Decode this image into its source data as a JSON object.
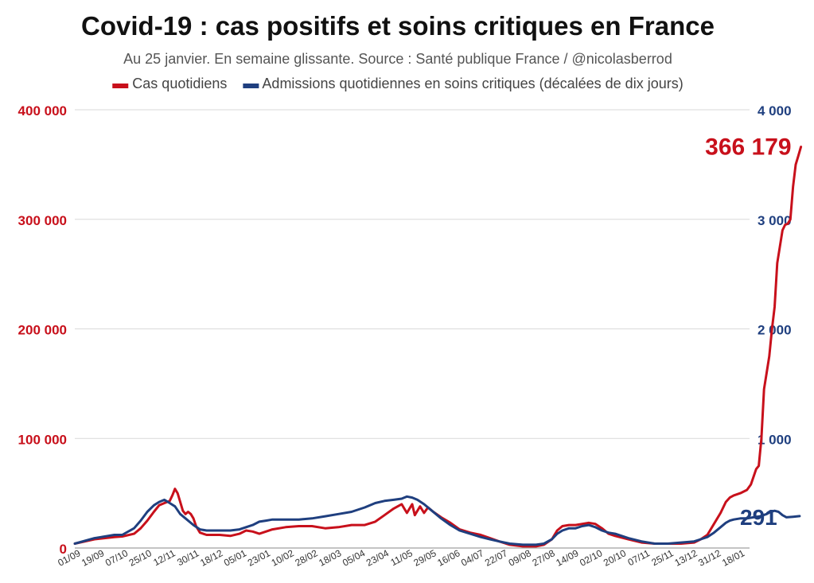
{
  "chart_data": {
    "type": "line",
    "title": "Covid-19 : cas positifs et soins critiques en France",
    "subtitle": "Au 25 janvier. En semaine glissante. Source : Santé publique France / @nicolasberrod",
    "left_axis": {
      "range": [
        0,
        400000
      ],
      "ticks": [
        {
          "value": 0,
          "label": "0"
        },
        {
          "value": 100000,
          "label": "100 000"
        },
        {
          "value": 200000,
          "label": "200 000"
        },
        {
          "value": 300000,
          "label": "300 000"
        },
        {
          "value": 400000,
          "label": "400 000"
        }
      ],
      "color": "#c8101b"
    },
    "right_axis": {
      "range": [
        0,
        4000
      ],
      "ticks": [
        {
          "value": 1000,
          "label": "1 000"
        },
        {
          "value": 2000,
          "label": "2 000"
        },
        {
          "value": 3000,
          "label": "3 000"
        },
        {
          "value": 4000,
          "label": "4 000"
        }
      ],
      "color": "#1f3f7f"
    },
    "x_tick_labels": [
      "01/09",
      "19/09",
      "07/10",
      "25/10",
      "12/11",
      "30/11",
      "18/12",
      "05/01",
      "23/01",
      "10/02",
      "28/02",
      "18/03",
      "05/04",
      "23/04",
      "11/05",
      "29/05",
      "16/06",
      "04/07",
      "22/07",
      "09/08",
      "27/08",
      "14/09",
      "02/10",
      "20/10",
      "07/11",
      "25/11",
      "13/12",
      "31/12",
      "18/01"
    ],
    "x_tick_interval_days": 18,
    "total_days": 512,
    "series": [
      {
        "name": "Cas quotidiens",
        "axis": "left",
        "color": "#c8101b",
        "end_label": "366 179",
        "points": [
          [
            0,
            4000
          ],
          [
            15,
            8000
          ],
          [
            30,
            10000
          ],
          [
            36,
            10500
          ],
          [
            45,
            13000
          ],
          [
            50,
            18000
          ],
          [
            55,
            25000
          ],
          [
            60,
            33000
          ],
          [
            64,
            39000
          ],
          [
            68,
            41000
          ],
          [
            72,
            43000
          ],
          [
            74,
            48000
          ],
          [
            76,
            54000
          ],
          [
            78,
            50000
          ],
          [
            80,
            42000
          ],
          [
            82,
            34000
          ],
          [
            84,
            31000
          ],
          [
            86,
            33000
          ],
          [
            88,
            31000
          ],
          [
            90,
            27000
          ],
          [
            92,
            20000
          ],
          [
            95,
            14000
          ],
          [
            100,
            12000
          ],
          [
            110,
            12000
          ],
          [
            118,
            11000
          ],
          [
            125,
            13000
          ],
          [
            130,
            16000
          ],
          [
            135,
            15000
          ],
          [
            140,
            13000
          ],
          [
            145,
            15000
          ],
          [
            150,
            17000
          ],
          [
            160,
            19000
          ],
          [
            170,
            20000
          ],
          [
            180,
            20000
          ],
          [
            190,
            18000
          ],
          [
            200,
            19000
          ],
          [
            210,
            21000
          ],
          [
            220,
            21000
          ],
          [
            228,
            24000
          ],
          [
            235,
            30000
          ],
          [
            242,
            36000
          ],
          [
            248,
            40000
          ],
          [
            252,
            32000
          ],
          [
            256,
            40000
          ],
          [
            258,
            30000
          ],
          [
            262,
            38000
          ],
          [
            265,
            32000
          ],
          [
            268,
            37000
          ],
          [
            272,
            33000
          ],
          [
            278,
            28000
          ],
          [
            285,
            23000
          ],
          [
            292,
            17000
          ],
          [
            300,
            14000
          ],
          [
            308,
            12000
          ],
          [
            315,
            9000
          ],
          [
            322,
            6000
          ],
          [
            330,
            3000
          ],
          [
            340,
            1500
          ],
          [
            350,
            1500
          ],
          [
            356,
            3000
          ],
          [
            362,
            8000
          ],
          [
            366,
            16000
          ],
          [
            370,
            20000
          ],
          [
            375,
            21000
          ],
          [
            380,
            21000
          ],
          [
            385,
            22000
          ],
          [
            390,
            23000
          ],
          [
            395,
            22000
          ],
          [
            400,
            18000
          ],
          [
            405,
            13000
          ],
          [
            410,
            11000
          ],
          [
            420,
            8000
          ],
          [
            430,
            5000
          ],
          [
            440,
            4000
          ],
          [
            450,
            4000
          ],
          [
            460,
            4000
          ],
          [
            470,
            5000
          ],
          [
            475,
            8000
          ],
          [
            480,
            12000
          ],
          [
            485,
            22000
          ],
          [
            490,
            32000
          ],
          [
            494,
            42000
          ],
          [
            497,
            46000
          ],
          [
            500,
            48000
          ],
          [
            505,
            50000
          ],
          [
            510,
            53000
          ],
          [
            513,
            58000
          ],
          [
            515,
            65000
          ],
          [
            517,
            72000
          ],
          [
            519,
            75000
          ],
          [
            521,
            100000
          ],
          [
            523,
            145000
          ],
          [
            525,
            160000
          ],
          [
            527,
            175000
          ],
          [
            529,
            200000
          ],
          [
            531,
            220000
          ],
          [
            533,
            260000
          ],
          [
            535,
            275000
          ],
          [
            537,
            290000
          ],
          [
            539,
            295000
          ],
          [
            541,
            296000
          ],
          [
            543,
            300000
          ],
          [
            545,
            330000
          ],
          [
            547,
            350000
          ],
          [
            549,
            358000
          ],
          [
            551,
            366179
          ]
        ]
      },
      {
        "name": "Admissions quotidiennes en soins critiques (décalées de dix jours)",
        "axis": "right",
        "color": "#1f3f7f",
        "end_label": "291",
        "points": [
          [
            0,
            40
          ],
          [
            15,
            90
          ],
          [
            30,
            120
          ],
          [
            36,
            120
          ],
          [
            45,
            180
          ],
          [
            50,
            250
          ],
          [
            55,
            330
          ],
          [
            60,
            390
          ],
          [
            64,
            420
          ],
          [
            68,
            440
          ],
          [
            72,
            410
          ],
          [
            76,
            380
          ],
          [
            80,
            310
          ],
          [
            85,
            260
          ],
          [
            90,
            210
          ],
          [
            95,
            170
          ],
          [
            100,
            160
          ],
          [
            110,
            160
          ],
          [
            118,
            160
          ],
          [
            125,
            170
          ],
          [
            130,
            190
          ],
          [
            135,
            210
          ],
          [
            140,
            240
          ],
          [
            145,
            250
          ],
          [
            150,
            260
          ],
          [
            160,
            260
          ],
          [
            170,
            260
          ],
          [
            180,
            270
          ],
          [
            190,
            290
          ],
          [
            200,
            310
          ],
          [
            210,
            330
          ],
          [
            220,
            370
          ],
          [
            228,
            410
          ],
          [
            235,
            430
          ],
          [
            242,
            440
          ],
          [
            248,
            450
          ],
          [
            252,
            470
          ],
          [
            256,
            460
          ],
          [
            260,
            440
          ],
          [
            265,
            400
          ],
          [
            270,
            350
          ],
          [
            278,
            270
          ],
          [
            285,
            210
          ],
          [
            292,
            160
          ],
          [
            300,
            130
          ],
          [
            308,
            100
          ],
          [
            315,
            80
          ],
          [
            322,
            60
          ],
          [
            330,
            40
          ],
          [
            340,
            30
          ],
          [
            350,
            30
          ],
          [
            356,
            40
          ],
          [
            362,
            80
          ],
          [
            366,
            130
          ],
          [
            370,
            160
          ],
          [
            375,
            180
          ],
          [
            380,
            180
          ],
          [
            385,
            200
          ],
          [
            390,
            210
          ],
          [
            395,
            190
          ],
          [
            400,
            160
          ],
          [
            405,
            140
          ],
          [
            410,
            130
          ],
          [
            420,
            90
          ],
          [
            430,
            60
          ],
          [
            440,
            40
          ],
          [
            450,
            40
          ],
          [
            460,
            50
          ],
          [
            470,
            60
          ],
          [
            475,
            80
          ],
          [
            480,
            100
          ],
          [
            485,
            140
          ],
          [
            490,
            190
          ],
          [
            494,
            230
          ],
          [
            497,
            250
          ],
          [
            500,
            260
          ],
          [
            505,
            270
          ],
          [
            510,
            270
          ],
          [
            515,
            280
          ],
          [
            520,
            290
          ],
          [
            525,
            310
          ],
          [
            528,
            330
          ],
          [
            531,
            340
          ],
          [
            534,
            330
          ],
          [
            537,
            300
          ],
          [
            540,
            280
          ],
          [
            545,
            285
          ],
          [
            550,
            291
          ]
        ]
      }
    ]
  },
  "legend": [
    {
      "marker": "▬",
      "label": "Cas quotidiens",
      "color": "#c8101b"
    },
    {
      "marker": "▬",
      "label": "Admissions quotidiennes en soins critiques (décalées de dix jours)",
      "color": "#1f3f7f"
    }
  ]
}
